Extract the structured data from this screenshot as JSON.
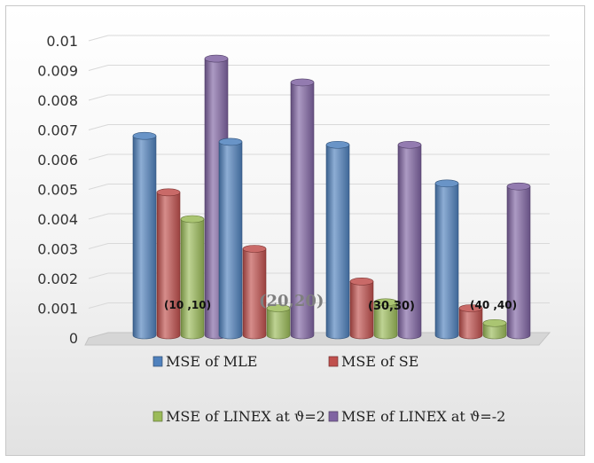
{
  "chart_data": {
    "type": "bar",
    "categories": [
      "(10 ,10)",
      "(20,20)",
      "(30,30)",
      "(40 ,40)"
    ],
    "series": [
      {
        "name": "MSE of MLE",
        "values": [
          0.0068,
          0.0066,
          0.0065,
          0.0052
        ],
        "color": "#4f81bd"
      },
      {
        "name": "MSE of SE",
        "values": [
          0.0049,
          0.003,
          0.0019,
          0.001
        ],
        "color": "#c0504d"
      },
      {
        "name": "MSE of LINEX at ϑ=2",
        "values": [
          0.004,
          0.001,
          0.0012,
          0.0005
        ],
        "color": "#9bbb59"
      },
      {
        "name": "MSE of LINEX at ϑ=-2",
        "values": [
          0.0094,
          0.0086,
          0.0065,
          0.0051
        ],
        "color": "#8064a2"
      }
    ],
    "yticks": [
      "0",
      "0.001",
      "0.002",
      "0.003",
      "0.004",
      "0.005",
      "0.006",
      "0.007",
      "0.008",
      "0.009",
      "0.01"
    ],
    "ylim": [
      0,
      0.01
    ],
    "grid": true,
    "legend": "bottom"
  }
}
